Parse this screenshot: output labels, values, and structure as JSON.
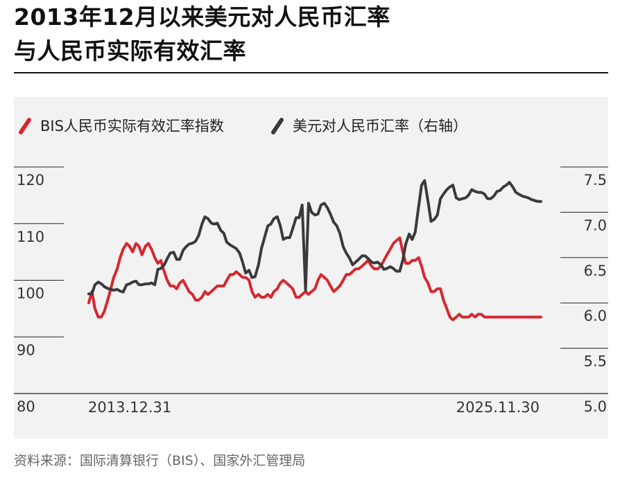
{
  "title_line1": "2013年12月以来美元对人民币汇率",
  "title_line2": "与人民币实际有效汇率",
  "source": "资料来源：国际清算银行（BIS）、国家外汇管理局",
  "colors": {
    "reer": "#d6272e",
    "usdcny": "#3a3a3a",
    "background": "#f2f2f2"
  },
  "chart_data": {
    "type": "line",
    "legend_placement": "top-left",
    "grid": true,
    "x_start_label": "2013.12.31",
    "x_end_label": "2025.11.30",
    "xlim": [
      2013.917,
      2025.917
    ],
    "y_left": {
      "ticks": [
        "80",
        "90",
        "100",
        "110",
        "120"
      ],
      "range": [
        80,
        120
      ]
    },
    "y_right": {
      "ticks": [
        "5.0",
        "5.5",
        "6.0",
        "6.5",
        "7.0",
        "7.5"
      ],
      "range": [
        5.0,
        7.5
      ]
    },
    "series": [
      {
        "name": "BIS人民币实际有效汇率指数",
        "axis": "left",
        "color": "#d6272e",
        "x": [
          2013.917,
          2014.0,
          2014.08,
          2014.17,
          2014.25,
          2014.33,
          2014.42,
          2014.5,
          2014.58,
          2014.67,
          2014.75,
          2014.83,
          2014.92,
          2015.0,
          2015.08,
          2015.17,
          2015.25,
          2015.33,
          2015.42,
          2015.5,
          2015.58,
          2015.67,
          2015.75,
          2015.83,
          2015.92,
          2016.0,
          2016.08,
          2016.17,
          2016.25,
          2016.33,
          2016.42,
          2016.5,
          2016.58,
          2016.67,
          2016.75,
          2016.83,
          2016.92,
          2017.0,
          2017.08,
          2017.17,
          2017.25,
          2017.33,
          2017.42,
          2017.5,
          2017.58,
          2017.67,
          2017.75,
          2017.83,
          2017.92,
          2018.0,
          2018.08,
          2018.17,
          2018.25,
          2018.33,
          2018.42,
          2018.5,
          2018.58,
          2018.67,
          2018.75,
          2018.83,
          2018.92,
          2019.0,
          2019.08,
          2019.17,
          2019.25,
          2019.33,
          2019.42,
          2019.5,
          2019.58,
          2019.67,
          2019.75,
          2019.83,
          2019.92,
          2020.0,
          2020.08,
          2020.17,
          2020.25,
          2020.33,
          2020.42,
          2020.5,
          2020.58,
          2020.67,
          2020.75,
          2020.83,
          2020.92,
          2021.0,
          2021.08,
          2021.17,
          2021.25,
          2021.33,
          2021.42,
          2021.5,
          2021.58,
          2021.67,
          2021.75,
          2021.83,
          2021.92,
          2022.0,
          2022.08,
          2022.17,
          2022.25,
          2022.33,
          2022.42,
          2022.5,
          2022.58,
          2022.67,
          2022.75,
          2022.83,
          2022.92,
          2023.0,
          2023.08,
          2023.17,
          2023.25,
          2023.33,
          2023.42,
          2023.5,
          2023.58,
          2023.67,
          2023.75,
          2023.83,
          2023.92,
          2024.0,
          2024.08,
          2024.17,
          2024.25,
          2024.33,
          2024.42,
          2024.5,
          2024.58,
          2024.67,
          2024.75,
          2024.83,
          2024.92,
          2025.0,
          2025.08,
          2025.17,
          2025.25,
          2025.33,
          2025.42,
          2025.5,
          2025.58,
          2025.67,
          2025.75,
          2025.83,
          2025.917
        ],
        "values": [
          96,
          98,
          95,
          93.5,
          93.5,
          94.5,
          96.5,
          98.5,
          100.5,
          102,
          104,
          105.5,
          106.5,
          106,
          105,
          106.5,
          106,
          104.5,
          106,
          106.5,
          105.5,
          104,
          103,
          103.5,
          101.5,
          100,
          99,
          99,
          98.5,
          99.5,
          100,
          99,
          98,
          97.5,
          96.5,
          96.5,
          97,
          98,
          97.5,
          98,
          98.5,
          99,
          99,
          99,
          100,
          101,
          101,
          101.5,
          101,
          100.5,
          100.5,
          100,
          98,
          97,
          97.5,
          97,
          97,
          97.5,
          97,
          98,
          98.5,
          99.5,
          100,
          99.5,
          99,
          98.5,
          97,
          97,
          97.5,
          98,
          97.5,
          98,
          98.5,
          100,
          101,
          100.5,
          100,
          99,
          98,
          98.5,
          99,
          100,
          101,
          101,
          101.5,
          102,
          102,
          102.5,
          103,
          103.5,
          102.5,
          102,
          102,
          102.5,
          103.5,
          104.5,
          105.5,
          106.5,
          107,
          107.5,
          105,
          103,
          103,
          103.5,
          103.5,
          104,
          102.5,
          100.5,
          99.5,
          98,
          98,
          98.5,
          98.5,
          96.5,
          95,
          93.5,
          93,
          93.5,
          94,
          93.5,
          93.5,
          93.5,
          94,
          93.5,
          94,
          94,
          93.5,
          93.5,
          93.5,
          93.5,
          93.5,
          93.5,
          93.5,
          93.5,
          93.5,
          93.5,
          93.5,
          93.5,
          93.5,
          93.5,
          93.5,
          93.5,
          93.5,
          93.5,
          93.5
        ]
      },
      {
        "name": "美元对人民币汇率（右轴）",
        "axis": "right",
        "color": "#3a3a3a",
        "x": [
          2013.917,
          2014.0,
          2014.08,
          2014.17,
          2014.25,
          2014.33,
          2014.42,
          2014.5,
          2014.58,
          2014.67,
          2014.75,
          2014.83,
          2014.92,
          2015.0,
          2015.08,
          2015.17,
          2015.25,
          2015.33,
          2015.42,
          2015.5,
          2015.58,
          2015.67,
          2015.75,
          2015.83,
          2015.92,
          2016.0,
          2016.08,
          2016.17,
          2016.25,
          2016.33,
          2016.42,
          2016.5,
          2016.58,
          2016.67,
          2016.75,
          2016.83,
          2016.92,
          2017.0,
          2017.08,
          2017.17,
          2017.25,
          2017.33,
          2017.42,
          2017.5,
          2017.58,
          2017.67,
          2017.75,
          2017.83,
          2017.92,
          2018.0,
          2018.08,
          2018.17,
          2018.25,
          2018.33,
          2018.42,
          2018.5,
          2018.58,
          2018.67,
          2018.75,
          2018.83,
          2018.92,
          2019.0,
          2019.08,
          2019.17,
          2019.25,
          2019.33,
          2019.42,
          2019.5,
          2019.58,
          2019.67,
          2019.75,
          2019.83,
          2019.92,
          2020.0,
          2020.08,
          2020.17,
          2020.25,
          2020.33,
          2020.42,
          2020.5,
          2020.58,
          2020.67,
          2020.75,
          2020.83,
          2020.92,
          2021.0,
          2021.08,
          2021.17,
          2021.25,
          2021.33,
          2021.42,
          2021.5,
          2021.58,
          2021.67,
          2021.75,
          2021.83,
          2021.92,
          2022.0,
          2022.08,
          2022.17,
          2022.25,
          2022.33,
          2022.42,
          2022.5,
          2022.58,
          2022.67,
          2022.75,
          2022.83,
          2022.92,
          2023.0,
          2023.08,
          2023.17,
          2023.25,
          2023.33,
          2023.42,
          2023.5,
          2023.58,
          2023.67,
          2023.75,
          2023.83,
          2023.92,
          2024.0,
          2024.08,
          2024.17,
          2024.25,
          2024.33,
          2024.42,
          2024.5,
          2024.58,
          2024.67,
          2024.75,
          2024.83,
          2024.92,
          2025.0,
          2025.08,
          2025.17,
          2025.25,
          2025.33,
          2025.42,
          2025.5,
          2025.58,
          2025.67,
          2025.75,
          2025.83,
          2025.917
        ],
        "values": [
          6.1,
          6.1,
          6.2,
          6.23,
          6.21,
          6.18,
          6.16,
          6.15,
          6.14,
          6.15,
          6.13,
          6.12,
          6.2,
          6.21,
          6.23,
          6.24,
          6.2,
          6.2,
          6.21,
          6.21,
          6.22,
          6.2,
          6.37,
          6.38,
          6.42,
          6.49,
          6.55,
          6.56,
          6.48,
          6.48,
          6.58,
          6.62,
          6.65,
          6.66,
          6.68,
          6.74,
          6.87,
          6.95,
          6.93,
          6.88,
          6.87,
          6.88,
          6.8,
          6.77,
          6.67,
          6.64,
          6.62,
          6.6,
          6.55,
          6.45,
          6.33,
          6.36,
          6.28,
          6.29,
          6.42,
          6.6,
          6.72,
          6.85,
          6.87,
          6.93,
          6.95,
          6.85,
          6.7,
          6.72,
          6.72,
          6.82,
          6.94,
          6.94,
          7.08,
          6.14,
          7.1,
          7.0,
          6.97,
          6.98,
          7.08,
          7.1,
          7.05,
          6.98,
          6.89,
          6.85,
          6.77,
          6.62,
          6.55,
          6.5,
          6.42,
          6.45,
          6.48,
          6.52,
          6.52,
          6.49,
          6.45,
          6.44,
          6.45,
          6.42,
          6.37,
          6.38,
          6.4,
          6.38,
          6.35,
          6.35,
          6.47,
          6.65,
          6.76,
          6.7,
          6.78,
          7.06,
          7.3,
          7.35,
          7.12,
          6.9,
          6.92,
          6.97,
          7.15,
          7.2,
          7.25,
          7.28,
          7.3,
          7.16,
          7.14,
          7.15,
          7.16,
          7.19,
          7.25,
          7.23,
          7.22,
          7.22,
          7.2,
          7.15,
          7.15,
          7.18,
          7.23,
          7.24,
          7.28,
          7.3,
          7.33,
          7.28,
          7.22,
          7.2,
          7.18,
          7.17,
          7.16,
          7.14,
          7.13,
          7.12,
          7.12
        ]
      }
    ]
  }
}
